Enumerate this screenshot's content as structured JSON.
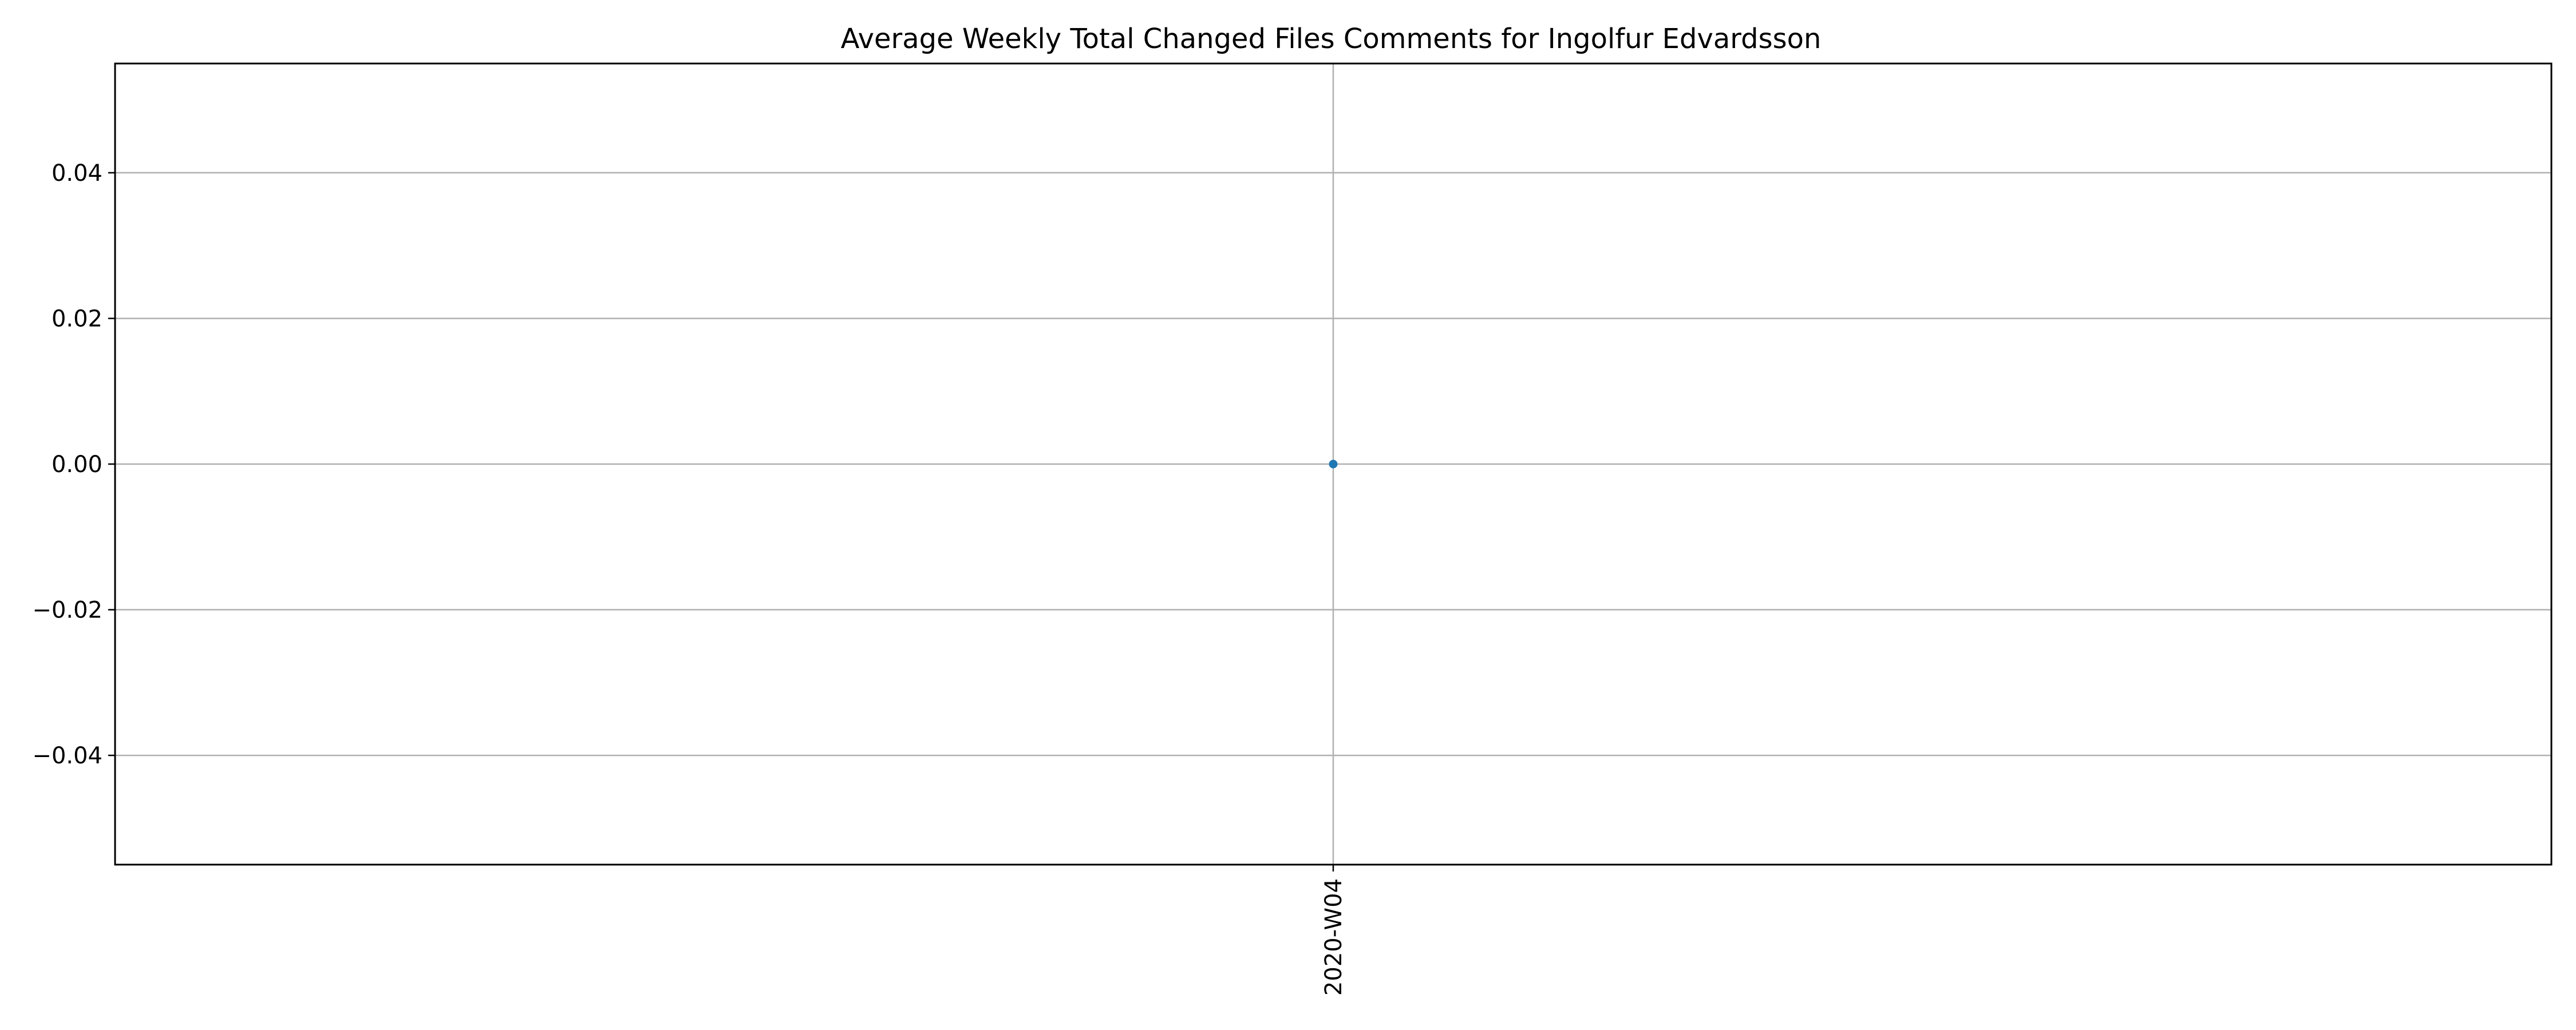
{
  "chart_data": {
    "type": "line",
    "title": "Average Weekly Total Changed Files Comments for Ingolfur Edvardsson",
    "xlabel": "",
    "ylabel": "",
    "categories": [
      "2020-W04"
    ],
    "series": [
      {
        "values": [
          0.0
        ]
      }
    ],
    "ylim": [
      -0.055,
      0.055
    ],
    "yticks": [
      -0.04,
      -0.02,
      0.0,
      0.02,
      0.04
    ],
    "ytick_labels": [
      "−0.04",
      "−0.02",
      "0.00",
      "0.02",
      "0.04"
    ],
    "xtick_rotation": "vertical",
    "grid": true,
    "legend": "none",
    "colors": {
      "series": "#1f77b4",
      "grid": "#b0b0b0",
      "axes": "#000000"
    }
  }
}
